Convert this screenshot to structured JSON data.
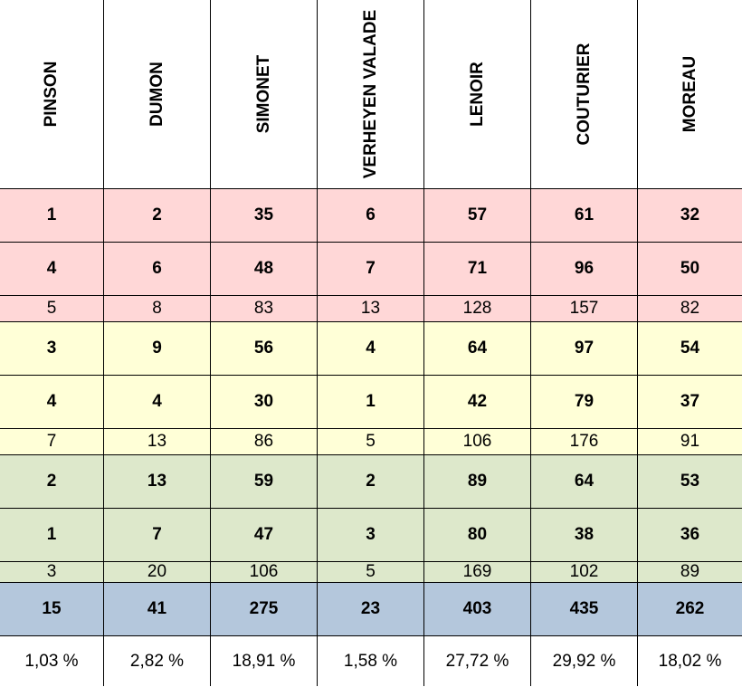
{
  "columns": [
    "PINSON",
    "DUMON",
    "SIMONET",
    "VERHEYEN VALADE",
    "LENOIR",
    "COUTURIER",
    "MOREAU"
  ],
  "colors": {
    "red_group": "#ffd7d7",
    "yellow_group": "#ffffd7",
    "green_group": "#dde8cb",
    "total": "#b4c7dc",
    "percent": "#ffffff",
    "grid_line": "#000000"
  },
  "rows": [
    {
      "group": "red_group",
      "bold": true,
      "cells": [
        "1",
        "2",
        "35",
        "6",
        "57",
        "61",
        "32"
      ]
    },
    {
      "group": "red_group",
      "bold": true,
      "cells": [
        "4",
        "6",
        "48",
        "7",
        "71",
        "96",
        "50"
      ]
    },
    {
      "group": "red_group",
      "bold": false,
      "cells": [
        "5",
        "8",
        "83",
        "13",
        "128",
        "157",
        "82"
      ]
    },
    {
      "group": "yellow_group",
      "bold": true,
      "cells": [
        "3",
        "9",
        "56",
        "4",
        "64",
        "97",
        "54"
      ]
    },
    {
      "group": "yellow_group",
      "bold": true,
      "cells": [
        "4",
        "4",
        "30",
        "1",
        "42",
        "79",
        "37"
      ]
    },
    {
      "group": "yellow_group",
      "bold": false,
      "cells": [
        "7",
        "13",
        "86",
        "5",
        "106",
        "176",
        "91"
      ]
    },
    {
      "group": "green_group",
      "bold": true,
      "cells": [
        "2",
        "13",
        "59",
        "2",
        "89",
        "64",
        "53"
      ]
    },
    {
      "group": "green_group",
      "bold": true,
      "cells": [
        "1",
        "7",
        "47",
        "3",
        "80",
        "38",
        "36"
      ]
    },
    {
      "group": "green_group",
      "bold": false,
      "cells": [
        "3",
        "20",
        "106",
        "5",
        "169",
        "102",
        "89"
      ]
    },
    {
      "group": "total",
      "bold": true,
      "cells": [
        "15",
        "41",
        "275",
        "23",
        "403",
        "435",
        "262"
      ]
    },
    {
      "group": "percent",
      "bold": false,
      "cells": [
        "1,03 %",
        "2,82 %",
        "18,91 %",
        "1,58 %",
        "27,72 %",
        "29,92 %",
        "18,02 %"
      ]
    }
  ]
}
